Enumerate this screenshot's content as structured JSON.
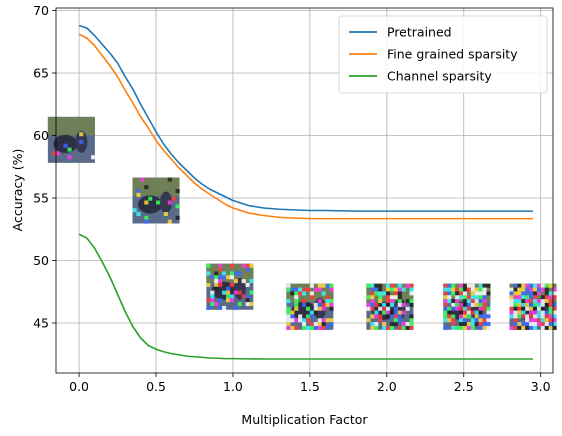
{
  "chart_data": {
    "type": "line",
    "xlabel": "Multiplication Factor",
    "ylabel": "Accuracy (%)",
    "xlim": [
      -0.15,
      3.08
    ],
    "ylim": [
      41,
      70.2
    ],
    "xticks": [
      0.0,
      0.5,
      1.0,
      1.5,
      2.0,
      2.5,
      3.0
    ],
    "xtick_labels": [
      "0.0",
      "0.5",
      "1.0",
      "1.5",
      "2.0",
      "2.5",
      "3.0"
    ],
    "yticks": [
      45,
      50,
      55,
      60,
      65,
      70
    ],
    "ytick_labels": [
      "45",
      "50",
      "55",
      "60",
      "65",
      "70"
    ],
    "grid": true,
    "legend_position": "top-right",
    "x": [
      0.0,
      0.05,
      0.1,
      0.15,
      0.2,
      0.25,
      0.3,
      0.35,
      0.4,
      0.45,
      0.5,
      0.55,
      0.6,
      0.65,
      0.7,
      0.75,
      0.8,
      0.85,
      0.9,
      0.95,
      1.0,
      1.1,
      1.2,
      1.3,
      1.4,
      1.5,
      1.6,
      1.8,
      2.0,
      2.2,
      2.4,
      2.6,
      2.8,
      2.95
    ],
    "series": [
      {
        "name": "Pretrained",
        "color": "#1f77b4",
        "values": [
          68.8,
          68.6,
          68.0,
          67.3,
          66.6,
          65.8,
          64.7,
          63.7,
          62.5,
          61.4,
          60.3,
          59.3,
          58.5,
          57.8,
          57.2,
          56.6,
          56.1,
          55.7,
          55.4,
          55.1,
          54.8,
          54.4,
          54.2,
          54.1,
          54.05,
          54.0,
          54.0,
          53.95,
          53.95,
          53.95,
          53.95,
          53.95,
          53.95,
          53.95
        ]
      },
      {
        "name": "Fine grained sparsity",
        "color": "#ff7f0e",
        "values": [
          68.1,
          67.8,
          67.2,
          66.4,
          65.6,
          64.7,
          63.6,
          62.6,
          61.5,
          60.6,
          59.6,
          58.8,
          58.1,
          57.4,
          56.8,
          56.2,
          55.7,
          55.3,
          54.9,
          54.5,
          54.2,
          53.8,
          53.6,
          53.45,
          53.4,
          53.35,
          53.35,
          53.35,
          53.35,
          53.35,
          53.35,
          53.35,
          53.35,
          53.35
        ]
      },
      {
        "name": "Channel sparsity",
        "color": "#2ca02c",
        "values": [
          52.1,
          51.8,
          51.0,
          49.9,
          48.7,
          47.3,
          45.9,
          44.7,
          43.8,
          43.2,
          42.9,
          42.7,
          42.55,
          42.45,
          42.35,
          42.3,
          42.25,
          42.2,
          42.18,
          42.15,
          42.15,
          42.13,
          42.12,
          42.12,
          42.12,
          42.12,
          42.12,
          42.12,
          42.12,
          42.12,
          42.12,
          42.12,
          42.12,
          42.12
        ]
      }
    ],
    "thumbnails": [
      {
        "x": -0.05,
        "y": 59.65,
        "noise": 0.05
      },
      {
        "x": 0.5,
        "y": 54.8,
        "noise": 0.15
      },
      {
        "x": 0.98,
        "y": 47.9,
        "noise": 0.35
      },
      {
        "x": 1.5,
        "y": 46.3,
        "noise": 0.55
      },
      {
        "x": 2.02,
        "y": 46.3,
        "noise": 0.7
      },
      {
        "x": 2.52,
        "y": 46.3,
        "noise": 0.8
      },
      {
        "x": 2.95,
        "y": 46.3,
        "noise": 0.88
      }
    ]
  }
}
